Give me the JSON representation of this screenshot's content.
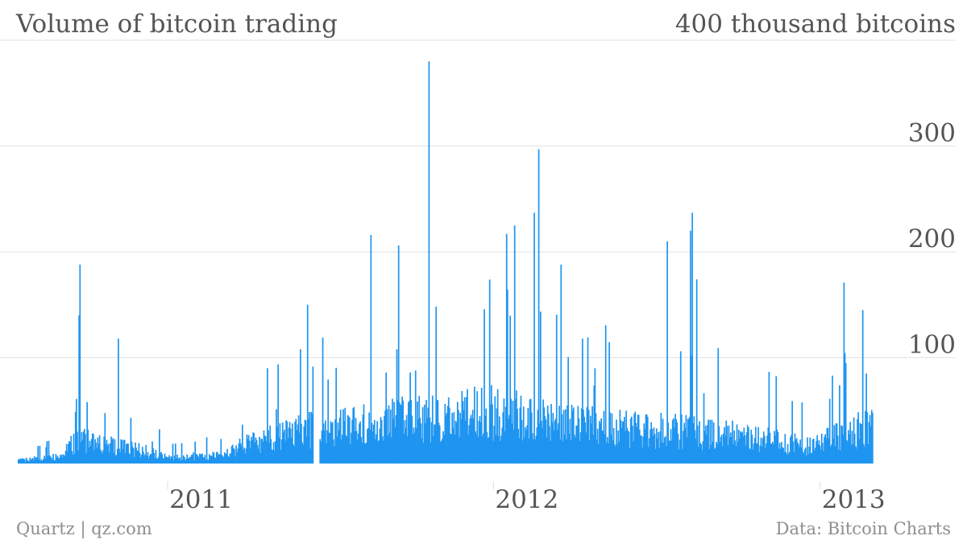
{
  "header": {
    "title": "Volume of bitcoin trading",
    "unit_label": "400 thousand bitcoins"
  },
  "footer": {
    "source_left": "Quartz | qz.com",
    "source_right": "Data: Bitcoin Charts"
  },
  "colors": {
    "bar": "#1f95f0",
    "grid": "#e2e2e2",
    "text": "#555555",
    "footer_text": "#8e8e8e"
  },
  "chart_data": {
    "type": "bar",
    "title": "Volume of bitcoin trading",
    "ylabel": "",
    "xlabel": "",
    "unit": "thousand bitcoins",
    "ylim": [
      0,
      400
    ],
    "y_ticks": [
      100,
      200,
      300
    ],
    "y_tick_labels": [
      "100",
      "200",
      "300"
    ],
    "top_label": "400 thousand bitcoins",
    "x_range": [
      "2010-07-17",
      "2013-02-28"
    ],
    "x_ticks": [
      "2011-01-01",
      "2012-01-01",
      "2013-01-01"
    ],
    "x_tick_labels": [
      "2011",
      "2012",
      "2013"
    ],
    "grid": true,
    "legend": "none",
    "gaps": [
      [
        "2011-06-13",
        "2011-06-19"
      ]
    ],
    "peaks": [
      {
        "date": "2010-09-23",
        "value": 140
      },
      {
        "date": "2010-09-24",
        "value": 188
      },
      {
        "date": "2010-11-06",
        "value": 118
      },
      {
        "date": "2011-05-29",
        "value": 108
      },
      {
        "date": "2011-06-06",
        "value": 150
      },
      {
        "date": "2011-08-16",
        "value": 216
      },
      {
        "date": "2011-09-16",
        "value": 206
      },
      {
        "date": "2011-10-20",
        "value": 380
      },
      {
        "date": "2012-01-15",
        "value": 217
      },
      {
        "date": "2012-01-24",
        "value": 225
      },
      {
        "date": "2012-02-15",
        "value": 237
      },
      {
        "date": "2012-02-20",
        "value": 297
      },
      {
        "date": "2012-03-16",
        "value": 188
      },
      {
        "date": "2012-07-13",
        "value": 210
      },
      {
        "date": "2012-08-08",
        "value": 220
      },
      {
        "date": "2012-08-10",
        "value": 237
      },
      {
        "date": "2012-08-15",
        "value": 174
      },
      {
        "date": "2013-01-27",
        "value": 171
      },
      {
        "date": "2013-02-17",
        "value": 145
      }
    ],
    "values_summary": "Daily trading volume; baseline ~5–15 thousand in late 2010, ~10–40 thousand through mid-2011, ~20–80 thousand through 2012 with spikes up to ~380 thousand in Oct 2011."
  }
}
